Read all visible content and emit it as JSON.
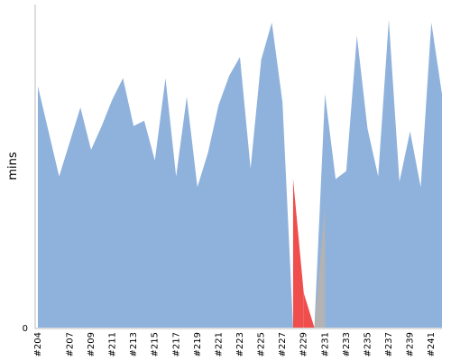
{
  "chart_data": {
    "type": "area",
    "ylabel": "mins",
    "x": [
      "#204",
      "#205",
      "#206",
      "#207",
      "#208",
      "#209",
      "#210",
      "#211",
      "#212",
      "#213",
      "#214",
      "#215",
      "#216",
      "#217",
      "#218",
      "#219",
      "#220",
      "#221",
      "#222",
      "#223",
      "#224",
      "#225",
      "#226",
      "#227",
      "#228",
      "#229",
      "#230",
      "#231",
      "#232",
      "#233",
      "#234",
      "#235",
      "#236",
      "#237",
      "#238",
      "#239",
      "#240",
      "#241",
      "#242"
    ],
    "x_ticks": [
      "#204",
      "#207",
      "#209",
      "#211",
      "#213",
      "#215",
      "#217",
      "#219",
      "#221",
      "#223",
      "#225",
      "#227",
      "#229",
      "#231",
      "#233",
      "#235",
      "#237",
      "#239",
      "#241"
    ],
    "y_ticks": [
      "0"
    ],
    "values": [
      91,
      74,
      57,
      70,
      83,
      67,
      76,
      86,
      94,
      76,
      78,
      63,
      94,
      57,
      87,
      53,
      66,
      84,
      95,
      102,
      60,
      101,
      115,
      85,
      0,
      0,
      0,
      88,
      56,
      59,
      110,
      75,
      57,
      116,
      55,
      74,
      53,
      115,
      88
    ],
    "failed_segments": [
      {
        "from": "#228",
        "to": "#229",
        "values": [
          56,
          13
        ]
      },
      {
        "from": "#229",
        "to": "#230",
        "values": [
          13,
          0
        ]
      }
    ],
    "aborted_segments": [
      {
        "from": "#230",
        "to": "#231",
        "values": [
          0,
          46
        ]
      }
    ],
    "colors": {
      "success": "#8fb2dc",
      "failed": "#f04d4d",
      "aborted": "#b3b3b3",
      "axis": "#bbbbbb"
    }
  }
}
